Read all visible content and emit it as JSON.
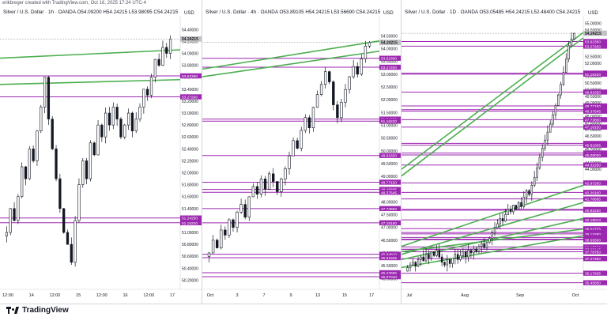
{
  "credit": "erikbreger created with TradingView.com, Oct 16, 2025 17:24 UTC-4",
  "brand": "TradingView",
  "colors": {
    "bull": "#ffffff",
    "bear": "#131722",
    "level": "#9c27b0",
    "trend": "#4caf50",
    "last_price_bg": "#c2c2c2"
  },
  "chart_data": [
    {
      "type": "candlestick",
      "title": "Silver / U.S. Dollar · 1h · OANDA",
      "ohlc_label": "O54.09200 H54.24215 L53.98095 C54.24215",
      "currency": "USD",
      "last_price": "54.24215",
      "ylim": [
        50.1,
        54.55
      ],
      "y_ticks": [
        "54.40000",
        "54.20000",
        "54.00000",
        "53.80000",
        "53.60000",
        "53.40000",
        "53.20000",
        "53.00000",
        "52.80000",
        "52.60000",
        "52.40000",
        "52.20000",
        "52.00000",
        "51.80000",
        "51.60000",
        "51.40000",
        "51.20000",
        "51.00000",
        "50.80000",
        "50.60000",
        "50.40000",
        "50.20000"
      ],
      "x_ticks": [
        "12:00",
        "14",
        "12:00",
        "15",
        "12:00",
        "16",
        "12:00",
        "17"
      ],
      "levels": [
        "53.62350",
        "53.27200",
        "51.24250",
        "51.16220"
      ],
      "trendlines": [
        {
          "y_start": 53.92,
          "y_end": 54.06
        },
        {
          "y_start": 53.48,
          "y_end": 53.56
        }
      ],
      "closes": [
        51.0,
        51.4,
        51.2,
        51.6,
        52.1,
        51.9,
        52.4,
        52.2,
        52.7,
        53.1,
        53.6,
        52.9,
        52.4,
        51.9,
        51.4,
        51.0,
        50.8,
        50.5,
        51.2,
        51.8,
        52.2,
        51.9,
        52.5,
        52.3,
        52.8,
        52.6,
        53.0,
        52.8,
        53.1,
        52.9,
        52.6,
        52.8,
        53.0,
        52.7,
        52.9,
        53.1,
        53.4,
        53.3,
        53.6,
        53.9,
        53.8,
        54.1,
        54.0,
        54.24
      ],
      "candle_range": [
        50.4,
        54.3
      ]
    },
    {
      "type": "candlestick",
      "title": "Silver / U.S. Dollar · 4h · OANDA",
      "ohlc_label": "O53.89105 H54.24215 L53.56690 C54.24215",
      "currency": "USD",
      "last_price": "54.24215",
      "ylim": [
        44.7,
        55.1
      ],
      "y_ticks": [
        "54.50000",
        "54.00000",
        "53.50000",
        "53.00000",
        "52.50000",
        "52.00000",
        "51.50000",
        "51.00000",
        "50.50000",
        "50.00000",
        "49.50000",
        "49.00000",
        "48.50000",
        "48.00000",
        "47.50000",
        "47.00000",
        "46.50000",
        "46.00000",
        "45.50000",
        "45.00000"
      ],
      "x_ticks": [
        "Oct",
        "3",
        "7",
        "9",
        "13",
        "15",
        "17"
      ],
      "levels": [
        "53.62350",
        "53.27200",
        "51.24250",
        "51.16220",
        "49.81650",
        "48.77150",
        "48.48885",
        "48.37545",
        "47.73850",
        "47.18150",
        "45.94810",
        "45.81505",
        "45.22585",
        "45.07040"
      ],
      "trendlines": [
        {
          "y_start": 53.2,
          "y_end": 54.3
        },
        {
          "y_start": 52.9,
          "y_end": 53.9
        }
      ],
      "closes": [
        46.0,
        46.5,
        46.2,
        46.9,
        46.7,
        47.3,
        47.0,
        47.6,
        47.9,
        47.4,
        48.2,
        48.6,
        48.3,
        48.9,
        48.5,
        49.1,
        48.8,
        48.4,
        48.9,
        49.3,
        49.8,
        50.4,
        50.1,
        50.8,
        51.3,
        50.9,
        51.7,
        52.2,
        52.6,
        53.1,
        52.7,
        51.8,
        51.3,
        51.9,
        52.4,
        52.9,
        53.3,
        53.0,
        53.6,
        54.1,
        54.24
      ],
      "candle_range": [
        45.2,
        54.3
      ]
    },
    {
      "type": "candlestick",
      "title": "Silver / U.S. Dollar · 1D · OANDA",
      "ohlc_label": "O53.05485 H54.24215 L52.48400 C54.24215",
      "currency": "USD",
      "last_price": "54.24215",
      "ylim": [
        35.2,
        55.2
      ],
      "y_ticks": [
        "55.00000",
        "54.50000",
        "52.50000",
        "52.00000",
        "51.00000",
        "50.50000",
        "50.00000",
        "49.50000",
        "49.00000",
        "48.50000",
        "48.00000",
        "47.50000",
        "47.00000",
        "46.50000",
        "46.00000",
        "45.50000",
        "45.00000",
        "44.50000",
        "44.00000"
      ],
      "x_ticks": [
        "Jul",
        "Aug",
        "Sep",
        "Oct"
      ],
      "levels": [
        "53.62350",
        "53.27200",
        "51.24250",
        "51.16220",
        "49.81650",
        "48.77150",
        "48.48885",
        "48.37545",
        "47.73850",
        "47.18150",
        "45.94810",
        "45.81505",
        "45.22585",
        "45.08030",
        "44.32250",
        "42.97200",
        "42.26160",
        "41.76695",
        "40.97785",
        "40.92230",
        "40.19013",
        "39.52775",
        "39.23870",
        "39.13280",
        "38.86450",
        "38.73800",
        "38.69500",
        "38.15530",
        "37.97225",
        "37.98145",
        "37.78750",
        "37.27450",
        "36.17695",
        "35.45850"
      ],
      "trendlines": [
        {
          "y_start": 44.0,
          "y_end": 54.3
        },
        {
          "y_start": 43.5,
          "y_end": 53.9
        },
        {
          "y_start": 38.2,
          "y_end": 42.8
        },
        {
          "y_start": 37.6,
          "y_end": 41.5
        },
        {
          "y_start": 37.2,
          "y_end": 40.3
        },
        {
          "y_start": 37.8,
          "y_end": 39.5
        },
        {
          "y_start": 36.6,
          "y_end": 39.0
        }
      ],
      "closes": [
        36.6,
        36.8,
        37.0,
        36.7,
        37.2,
        37.4,
        37.1,
        37.6,
        37.3,
        37.8,
        37.5,
        37.9,
        37.4,
        37.0,
        36.8,
        37.2,
        36.9,
        37.3,
        37.6,
        37.2,
        37.5,
        37.8,
        37.4,
        37.9,
        37.7,
        38.0,
        37.8,
        38.2,
        38.4,
        38.1,
        38.5,
        38.8,
        39.2,
        39.6,
        39.9,
        40.3,
        40.1,
        40.6,
        41.0,
        40.8,
        41.3,
        41.0,
        41.5,
        41.2,
        41.9,
        42.4,
        42.1,
        42.8,
        43.4,
        44.1,
        44.9,
        45.6,
        46.2,
        46.8,
        47.4,
        48.1,
        48.8,
        49.6,
        50.4,
        51.3,
        52.3,
        53.3,
        53.8,
        54.24
      ],
      "candle_range": [
        36.3,
        54.3
      ]
    }
  ]
}
